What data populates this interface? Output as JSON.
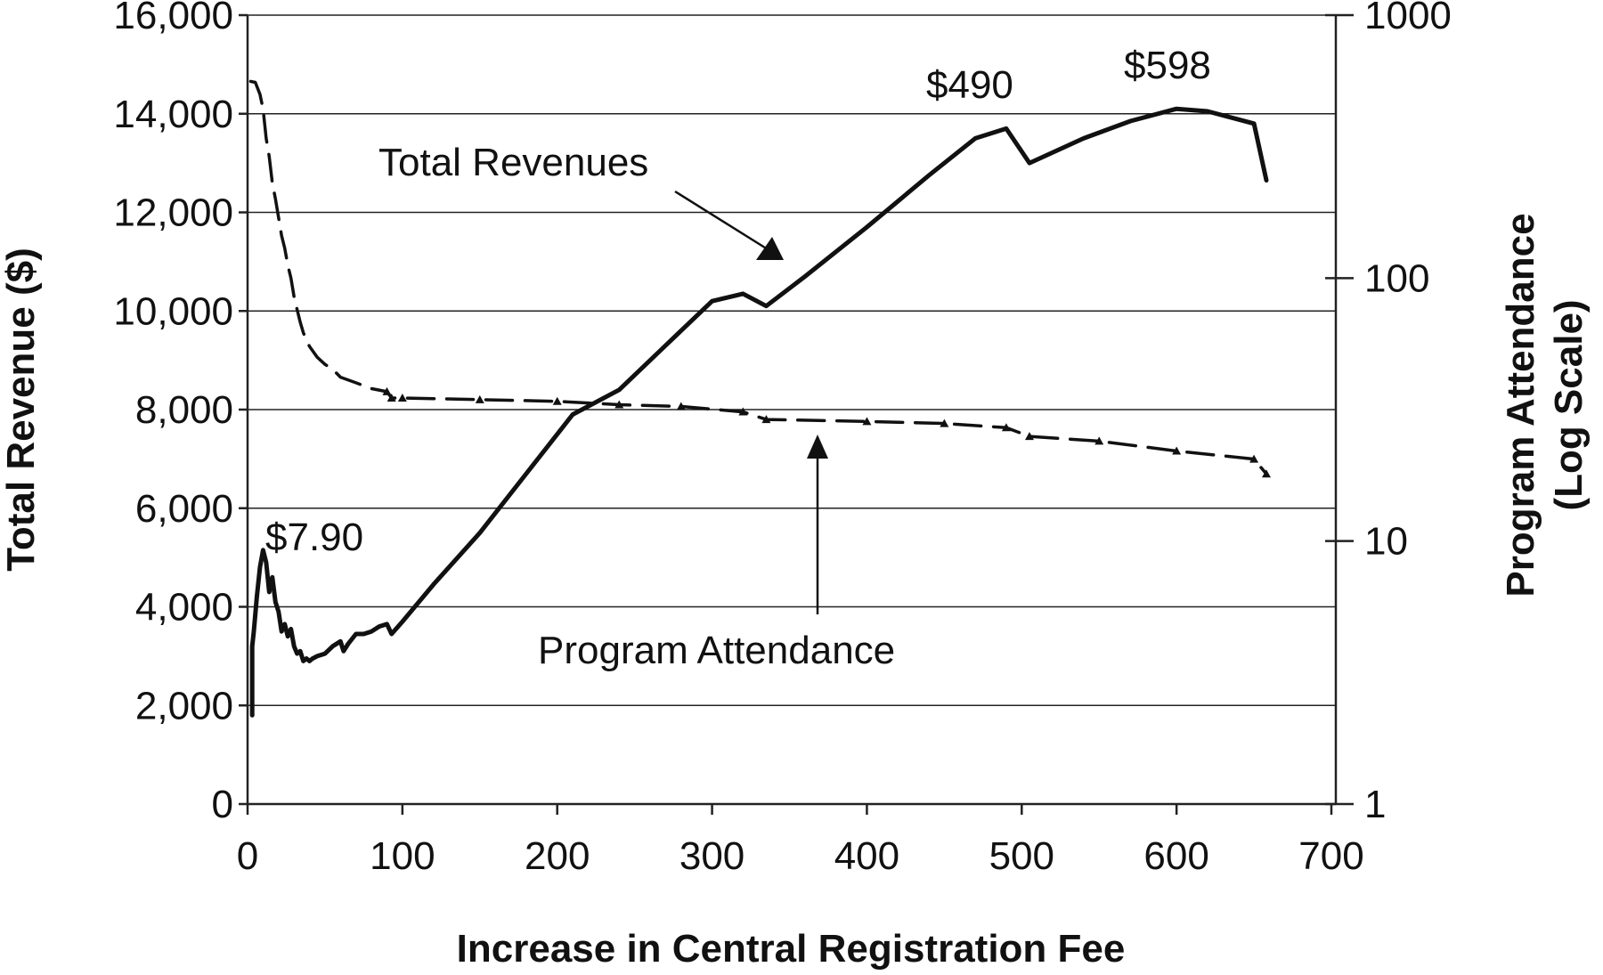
{
  "chart_data": {
    "type": "line",
    "xlabel": "Increase in Central Registration Fee",
    "ylabel": "Total Revenue ($)",
    "y2label": [
      "Program Attendance",
      "(Log Scale)"
    ],
    "xlim": [
      0,
      700
    ],
    "ylim": [
      0,
      16000
    ],
    "y2lim": [
      1,
      1000
    ],
    "y2scale": "log",
    "grid": "horizontal",
    "x_ticks": [
      "0",
      "100",
      "200",
      "300",
      "400",
      "500",
      "600",
      "700"
    ],
    "y_ticks": [
      "0",
      "2,000",
      "4,000",
      "6,000",
      "8,000",
      "10,000",
      "12,000",
      "14,000",
      "16,000"
    ],
    "y2_ticks": [
      "1",
      "10",
      "100",
      "1000"
    ],
    "series": [
      {
        "name": "Total Revenues",
        "axis": "left",
        "style": "solid",
        "x": [
          3,
          3,
          4,
          6,
          8,
          10,
          12,
          14,
          16,
          18,
          20,
          22,
          24,
          26,
          28,
          30,
          32,
          34,
          36,
          38,
          40,
          42,
          45,
          50,
          55,
          60,
          62,
          65,
          70,
          75,
          80,
          85,
          90,
          93,
          100,
          120,
          150,
          180,
          210,
          240,
          270,
          300,
          320,
          335,
          360,
          400,
          440,
          470,
          490,
          505,
          540,
          570,
          600,
          620,
          650,
          658
        ],
        "y": [
          1800,
          3200,
          3500,
          4200,
          4800,
          5150,
          4900,
          4300,
          4600,
          4100,
          3900,
          3500,
          3650,
          3400,
          3550,
          3200,
          3050,
          3100,
          2900,
          2950,
          2900,
          2950,
          3000,
          3050,
          3200,
          3300,
          3100,
          3250,
          3450,
          3450,
          3500,
          3600,
          3650,
          3450,
          3700,
          4450,
          5500,
          6700,
          7900,
          8400,
          9300,
          10200,
          10350,
          10100,
          10700,
          11700,
          12750,
          13500,
          13700,
          13000,
          13500,
          13850,
          14100,
          14050,
          13800,
          12650
        ]
      },
      {
        "name": "Program Attendance",
        "axis": "right",
        "style": "dashed",
        "x": [
          2,
          5,
          8,
          10,
          12,
          14,
          16,
          18,
          20,
          22,
          24,
          26,
          28,
          30,
          32,
          34,
          36,
          38,
          40,
          45,
          50,
          55,
          60,
          70,
          80,
          90,
          93,
          100,
          150,
          200,
          240,
          280,
          320,
          335,
          400,
          450,
          490,
          505,
          550,
          600,
          650,
          658
        ],
        "y": [
          560,
          555,
          500,
          440,
          340,
          290,
          230,
          200,
          170,
          145,
          130,
          112,
          100,
          85,
          76,
          68,
          62,
          58,
          55,
          50,
          47,
          45,
          42,
          40,
          38,
          37,
          35,
          35,
          34.5,
          34,
          33,
          32.5,
          31,
          29,
          28.5,
          28,
          27,
          25,
          24,
          22,
          20.5,
          18
        ]
      }
    ],
    "annotations": [
      "$7.90",
      "$490",
      "$598",
      "Total Revenues",
      "Program Attendance"
    ]
  }
}
